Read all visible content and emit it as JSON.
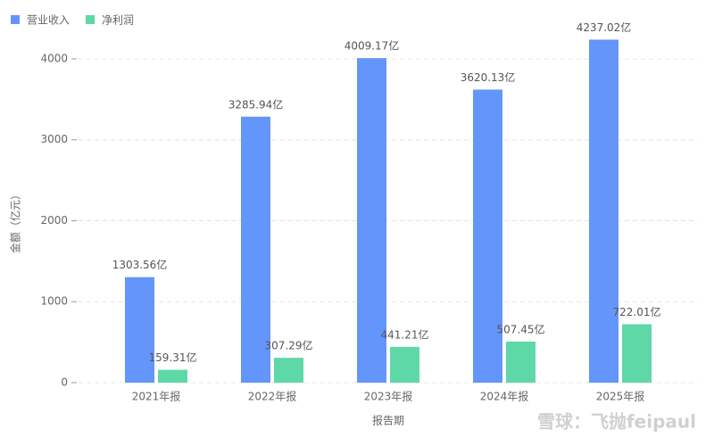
{
  "chart_data": {
    "type": "bar",
    "categories": [
      "2021年报",
      "2022年报",
      "2023年报",
      "2024年报",
      "2025年报"
    ],
    "series": [
      {
        "name": "营业收入",
        "color": "#6495fa",
        "values": [
          1303.56,
          3285.94,
          4009.17,
          3620.13,
          4237.02
        ],
        "value_labels": [
          "1303.56亿",
          "3285.94亿",
          "4009.17亿",
          "3620.13亿",
          "4237.02亿"
        ]
      },
      {
        "name": "净利润",
        "color": "#5fd8a8",
        "values": [
          159.31,
          307.29,
          441.21,
          507.45,
          722.01
        ],
        "value_labels": [
          "159.31亿",
          "307.29亿",
          "441.21亿",
          "507.45亿",
          "722.01亿"
        ]
      }
    ],
    "ylabel": "金额（亿元）",
    "xlabel": "报告期",
    "ylim": [
      0,
      4500
    ],
    "yticks": [
      0,
      1000,
      2000,
      3000,
      4000
    ],
    "grid": true,
    "legend": "top-left",
    "watermark": "雪球：飞抛feipaul"
  }
}
